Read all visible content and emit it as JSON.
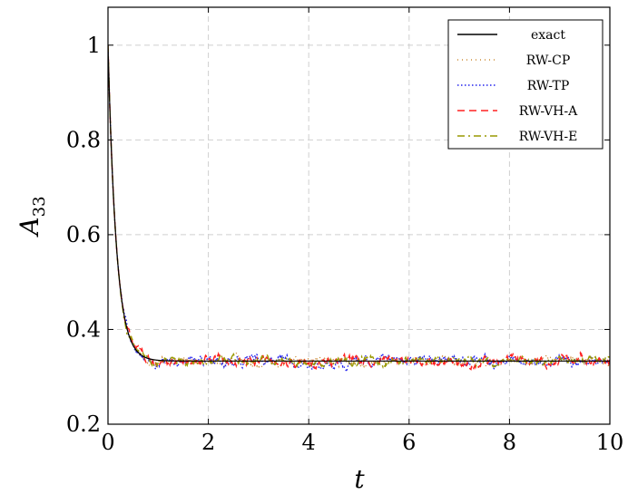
{
  "chart_data": {
    "type": "line",
    "xlabel": "t",
    "ylabel": "A",
    "ylabel_sub": "33",
    "xlim": [
      0,
      10
    ],
    "ylim": [
      0.2,
      1.08
    ],
    "xticks": [
      0,
      2,
      4,
      6,
      8,
      10
    ],
    "xtick_labels": [
      "0",
      "2",
      "4",
      "6",
      "8",
      "10"
    ],
    "yticks": [
      0.2,
      0.4,
      0.6,
      0.8,
      1.0
    ],
    "ytick_labels": [
      "0.2",
      "0.4",
      "0.6",
      "0.8",
      "1"
    ],
    "grid": true,
    "legend_position": "top-right",
    "series": [
      {
        "name": "exact",
        "color": "#000000",
        "style": "solid",
        "equilibrium": 0.3333,
        "decay_rate": 6.0,
        "noise": 0.0
      },
      {
        "name": "RW-CP",
        "color": "#cc8a33",
        "style": "dotted-sparse",
        "equilibrium": 0.3333,
        "decay_rate": 6.0,
        "noise": 0.004
      },
      {
        "name": "RW-TP",
        "color": "#2222ee",
        "style": "dotted",
        "equilibrium": 0.3333,
        "decay_rate": 6.0,
        "noise": 0.005
      },
      {
        "name": "RW-VH-A",
        "color": "#ff2020",
        "style": "dashed",
        "equilibrium": 0.3333,
        "decay_rate": 6.0,
        "noise": 0.005
      },
      {
        "name": "RW-VH-E",
        "color": "#999900",
        "style": "dashdot",
        "equilibrium": 0.3333,
        "decay_rate": 6.0,
        "noise": 0.004
      }
    ]
  }
}
